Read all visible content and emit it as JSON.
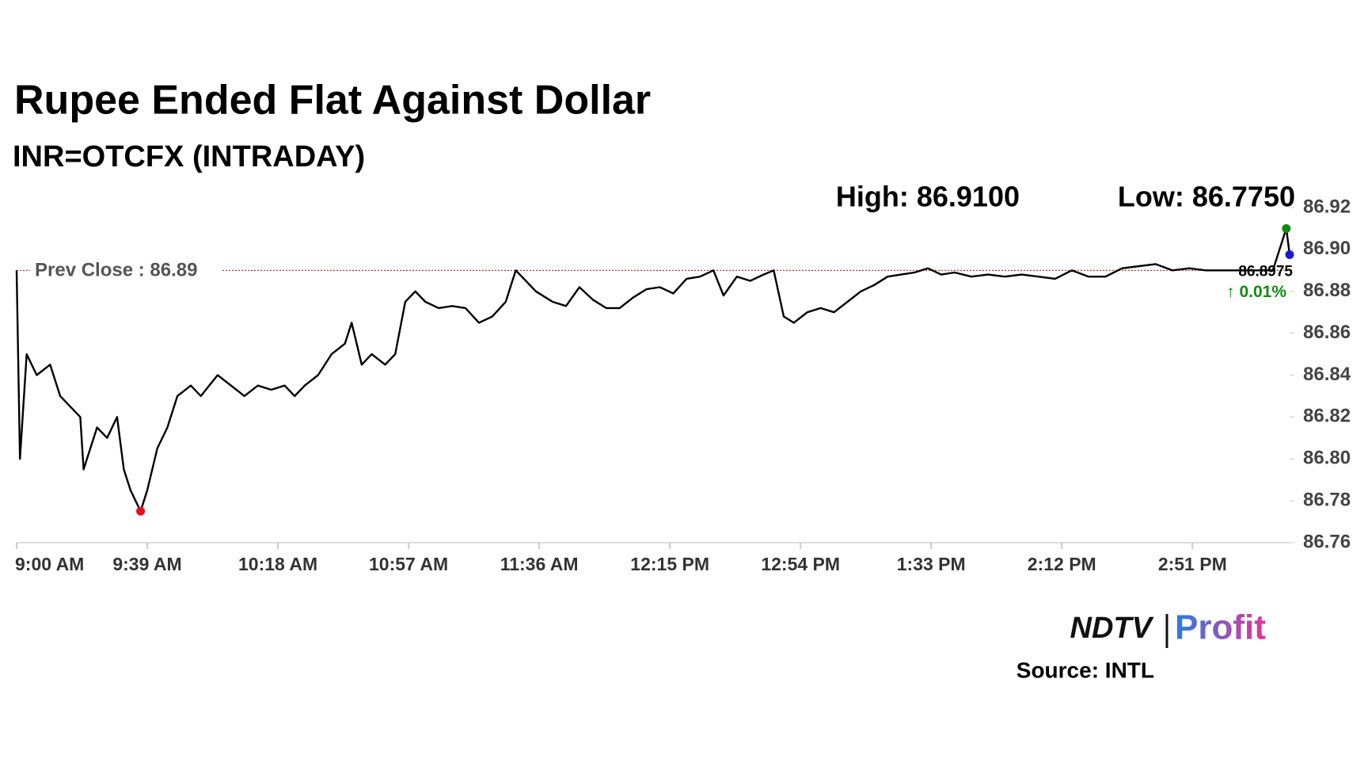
{
  "chart_data": {
    "type": "line",
    "title": "Rupee Ended Flat Against Dollar",
    "subtitle": "INR=OTCFX (INTRADAY)",
    "high_label": "High: 86.9100",
    "low_label": "Low: 86.7750",
    "x": [
      "9:00 AM",
      "9:01 AM",
      "9:03 AM",
      "9:06 AM",
      "9:10 AM",
      "9:13 AM",
      "9:16 AM",
      "9:19 AM",
      "9:20 AM",
      "9:24 AM",
      "9:27 AM",
      "9:30 AM",
      "9:32 AM",
      "9:34 AM",
      "9:37 AM",
      "9:39 AM",
      "9:42 AM",
      "9:45 AM",
      "9:48 AM",
      "9:52 AM",
      "9:55 AM",
      "10:00 AM",
      "10:04 AM",
      "10:08 AM",
      "10:12 AM",
      "10:16 AM",
      "10:20 AM",
      "10:23 AM",
      "10:26 AM",
      "10:30 AM",
      "10:34 AM",
      "10:38 AM",
      "10:40 AM",
      "10:43 AM",
      "10:46 AM",
      "10:50 AM",
      "10:53 AM",
      "10:56 AM",
      "10:59 AM",
      "11:02 AM",
      "11:06 AM",
      "11:10 AM",
      "11:14 AM",
      "11:18 AM",
      "11:22 AM",
      "11:26 AM",
      "11:29 AM",
      "11:32 AM",
      "11:35 AM",
      "11:40 AM",
      "11:44 AM",
      "11:48 AM",
      "11:52 AM",
      "11:56 AM",
      "12:00 PM",
      "12:04 PM",
      "12:08 PM",
      "12:12 PM",
      "12:16 PM",
      "12:20 PM",
      "12:24 PM",
      "12:28 PM",
      "12:31 PM",
      "12:35 PM",
      "12:39 PM",
      "12:43 PM",
      "12:46 PM",
      "12:49 PM",
      "12:52 PM",
      "12:56 PM",
      "1:00 PM",
      "1:04 PM",
      "1:08 PM",
      "1:12 PM",
      "1:16 PM",
      "1:20 PM",
      "1:24 PM",
      "1:28 PM",
      "1:32 PM",
      "1:36 PM",
      "1:40 PM",
      "1:45 PM",
      "1:50 PM",
      "1:55 PM",
      "2:00 PM",
      "2:05 PM",
      "2:10 PM",
      "2:15 PM",
      "2:20 PM",
      "2:25 PM",
      "2:30 PM",
      "2:35 PM",
      "2:40 PM",
      "2:45 PM",
      "2:50 PM",
      "2:55 PM",
      "3:00 PM",
      "3:05 PM",
      "3:10 PM",
      "3:15 PM",
      "3:19 PM",
      "3:20 PM"
    ],
    "series": [
      {
        "color": "#000000",
        "values": [
          86.89,
          86.8,
          86.85,
          86.84,
          86.845,
          86.83,
          86.825,
          86.82,
          86.795,
          86.815,
          86.81,
          86.82,
          86.795,
          86.785,
          86.775,
          86.785,
          86.805,
          86.815,
          86.83,
          86.835,
          86.83,
          86.84,
          86.835,
          86.83,
          86.835,
          86.833,
          86.835,
          86.83,
          86.835,
          86.84,
          86.85,
          86.855,
          86.865,
          86.845,
          86.85,
          86.845,
          86.85,
          86.875,
          86.88,
          86.875,
          86.872,
          86.873,
          86.872,
          86.865,
          86.868,
          86.875,
          86.89,
          86.885,
          86.88,
          86.875,
          86.873,
          86.882,
          86.876,
          86.872,
          86.872,
          86.877,
          86.881,
          86.882,
          86.879,
          86.886,
          86.887,
          86.89,
          86.878,
          86.887,
          86.885,
          86.888,
          86.89,
          86.868,
          86.865,
          86.87,
          86.872,
          86.87,
          86.875,
          86.88,
          86.883,
          86.887,
          86.888,
          86.889,
          86.891,
          86.888,
          86.889,
          86.887,
          86.888,
          86.887,
          86.888,
          86.887,
          86.886,
          86.89,
          86.887,
          86.887,
          86.891,
          86.892,
          86.893,
          86.89,
          86.891,
          86.89,
          86.89,
          86.89,
          86.89,
          86.89,
          86.91,
          86.8975
        ]
      }
    ],
    "low_color": "#e8101a",
    "high_color": "#138a13",
    "last_color": "#1a1ad0",
    "last_label": "86.8975",
    "change_label": "↑ 0.01%",
    "change_color": "#138a13",
    "prev_close": {
      "value": 86.89,
      "label": "Prev Close : 86.89"
    },
    "prev_close_color": "#b22222",
    "xlim": [
      "9:00 AM",
      "3:20 PM"
    ],
    "xticks": [
      "9:00 AM",
      "9:39 AM",
      "10:18 AM",
      "10:57 AM",
      "11:36 AM",
      "12:15 PM",
      "12:54 PM",
      "1:33 PM",
      "2:12 PM",
      "2:51 PM"
    ],
    "ylim": [
      86.76,
      86.92
    ],
    "yticks": [
      86.76,
      86.78,
      {
        "value": 86.8,
        "label": "86.80"
      },
      86.82,
      86.84,
      86.86,
      86.88,
      {
        "value": 86.9,
        "label": "86.90"
      },
      86.92
    ],
    "source": "Source: INTL",
    "brand": "NDTV",
    "brand_sub": "Profit"
  }
}
